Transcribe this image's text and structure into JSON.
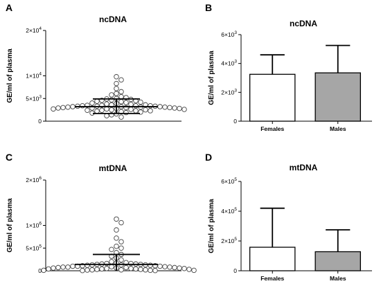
{
  "chart_data": [
    {
      "panel": "A",
      "type": "scatter",
      "title": "ncDNA",
      "ylabel": "GE/ml of plasma",
      "ylim": [
        0,
        20000
      ],
      "yticks": [
        {
          "value": 0,
          "base": "0",
          "exp": ""
        },
        {
          "value": 5000,
          "base": "5×10",
          "exp": "3"
        },
        {
          "value": 10000,
          "base": "1×10",
          "exp": "4"
        },
        {
          "value": 20000,
          "base": "2×10",
          "exp": "4"
        }
      ],
      "points": [
        9800,
        9100,
        8300,
        7200,
        6500,
        6100,
        5800,
        5400,
        5200,
        5000,
        4900,
        4800,
        4700,
        4600,
        4500,
        4400,
        4300,
        4200,
        4100,
        4000,
        3900,
        3800,
        3700,
        3600,
        3600,
        3500,
        3500,
        3400,
        3400,
        3400,
        3300,
        3300,
        3300,
        3200,
        3200,
        3200,
        3100,
        3100,
        3100,
        3000,
        3000,
        3000,
        2900,
        2900,
        2900,
        2800,
        2800,
        2700,
        2700,
        2600,
        2600,
        2500,
        2500,
        2400,
        2400,
        2300,
        2300,
        2200,
        2100,
        2000,
        1900,
        1800,
        1600,
        1400,
        1200,
        900
      ],
      "mean": 3200,
      "sd_upper": 4900,
      "sd_lower": 1700
    },
    {
      "panel": "B",
      "type": "bar",
      "title": "ncDNA",
      "ylabel": "GE/ml of plasma",
      "ylim": [
        0,
        6000
      ],
      "yticks": [
        {
          "value": 0,
          "base": "0",
          "exp": ""
        },
        {
          "value": 2000,
          "base": "2×10",
          "exp": "3"
        },
        {
          "value": 4000,
          "base": "4×10",
          "exp": "3"
        },
        {
          "value": 6000,
          "base": "6×10",
          "exp": "3"
        }
      ],
      "categories": [
        "Females",
        "Males"
      ],
      "values": [
        3250,
        3350
      ],
      "errors_upper": [
        4600,
        5250
      ],
      "colors": [
        "#ffffff",
        "#a6a6a6"
      ]
    },
    {
      "panel": "C",
      "type": "scatter",
      "title": "mtDNA",
      "ylabel": "GE/ml of plasma",
      "ylim": [
        0,
        2000000
      ],
      "yticks": [
        {
          "value": 0,
          "base": "0",
          "exp": ""
        },
        {
          "value": 500000,
          "base": "5×10",
          "exp": "5"
        },
        {
          "value": 1000000,
          "base": "1×10",
          "exp": "6"
        },
        {
          "value": 2000000,
          "base": "2×10",
          "exp": "6"
        }
      ],
      "points": [
        1140000,
        1060000,
        900000,
        720000,
        640000,
        540000,
        500000,
        470000,
        400000,
        360000,
        320000,
        280000,
        240000,
        200000,
        180000,
        170000,
        160000,
        160000,
        150000,
        150000,
        140000,
        140000,
        130000,
        130000,
        130000,
        120000,
        120000,
        110000,
        110000,
        100000,
        100000,
        100000,
        90000,
        90000,
        80000,
        80000,
        80000,
        70000,
        70000,
        70000,
        60000,
        60000,
        60000,
        50000,
        50000,
        50000,
        40000,
        40000,
        40000,
        30000,
        30000,
        30000,
        20000,
        20000,
        20000,
        15000,
        10000,
        10000,
        10000,
        5000,
        5000
      ],
      "mean": 140000,
      "sd_upper": 360000,
      "sd_lower": 0
    },
    {
      "panel": "D",
      "type": "bar",
      "title": "mtDNA",
      "ylabel": "GE/ml of plasma",
      "ylim": [
        0,
        600000
      ],
      "yticks": [
        {
          "value": 0,
          "base": "0",
          "exp": ""
        },
        {
          "value": 200000,
          "base": "2×10",
          "exp": "5"
        },
        {
          "value": 400000,
          "base": "4×10",
          "exp": "5"
        },
        {
          "value": 600000,
          "base": "6×10",
          "exp": "5"
        }
      ],
      "categories": [
        "Females",
        "Males"
      ],
      "values": [
        158000,
        128000
      ],
      "errors_upper": [
        420000,
        275000
      ],
      "colors": [
        "#ffffff",
        "#a6a6a6"
      ]
    }
  ]
}
